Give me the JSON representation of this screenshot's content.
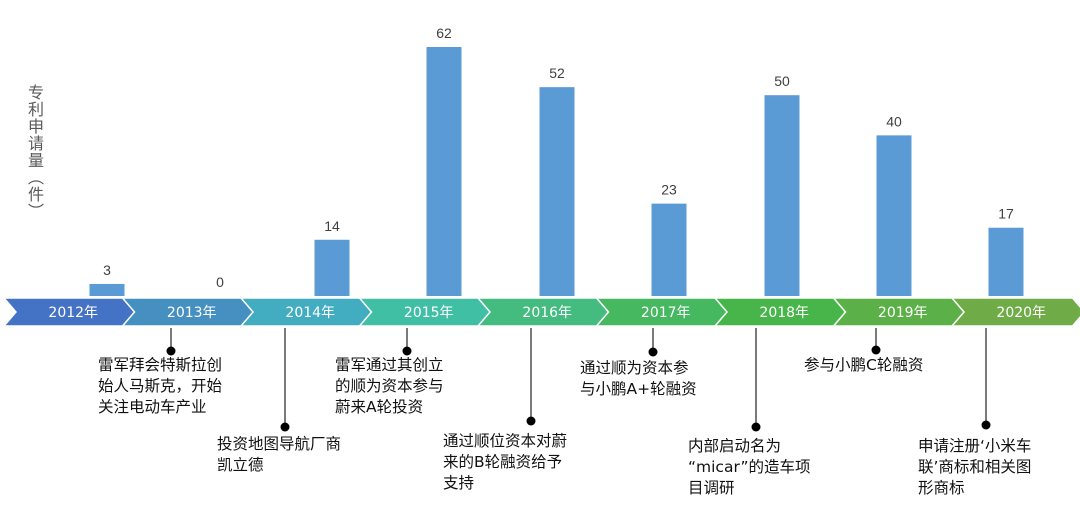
{
  "chart_data": {
    "type": "bar",
    "title": "",
    "xlabel": "",
    "ylabel": "专利申请量（件）",
    "categories": [
      "2012年",
      "2013年",
      "2014年",
      "2015年",
      "2016年",
      "2017年",
      "2018年",
      "2019年",
      "2020年"
    ],
    "values": [
      3,
      0,
      14,
      62,
      52,
      23,
      50,
      40,
      17
    ],
    "ylim": [
      0,
      62
    ],
    "grid": false,
    "bar_color": "#5B9BD5",
    "timeline_colors": [
      "#4472C4",
      "#4590C0",
      "#42ACC0",
      "#40BFA5",
      "#44BC80",
      "#45B860",
      "#47B54A",
      "#5CB048",
      "#6FAB46"
    ],
    "events": [
      {
        "year": "2013年",
        "text": "雷军拜会特斯拉创\n始人马斯克，开始\n关注电动车产业"
      },
      {
        "year": "2014年",
        "text": "投资地图导航厂商\n凯立德"
      },
      {
        "year": "2015年",
        "text": "雷军通过其创立\n的顺为资本参与\n蔚来A轮投资"
      },
      {
        "year": "2016年",
        "text": "通过顺位资本对蔚\n来的B轮融资给予\n支持"
      },
      {
        "year": "2017年",
        "text": "通过顺为资本参\n与小鹏A+轮融资"
      },
      {
        "year": "2018年",
        "text": "内部启动名为\n“micar”的造车项\n目调研"
      },
      {
        "year": "2019年",
        "text": "参与小鹏C轮融资"
      },
      {
        "year": "2020年",
        "text": "申请注册‘小米车\n联’商标和相关图\n形商标"
      }
    ]
  }
}
